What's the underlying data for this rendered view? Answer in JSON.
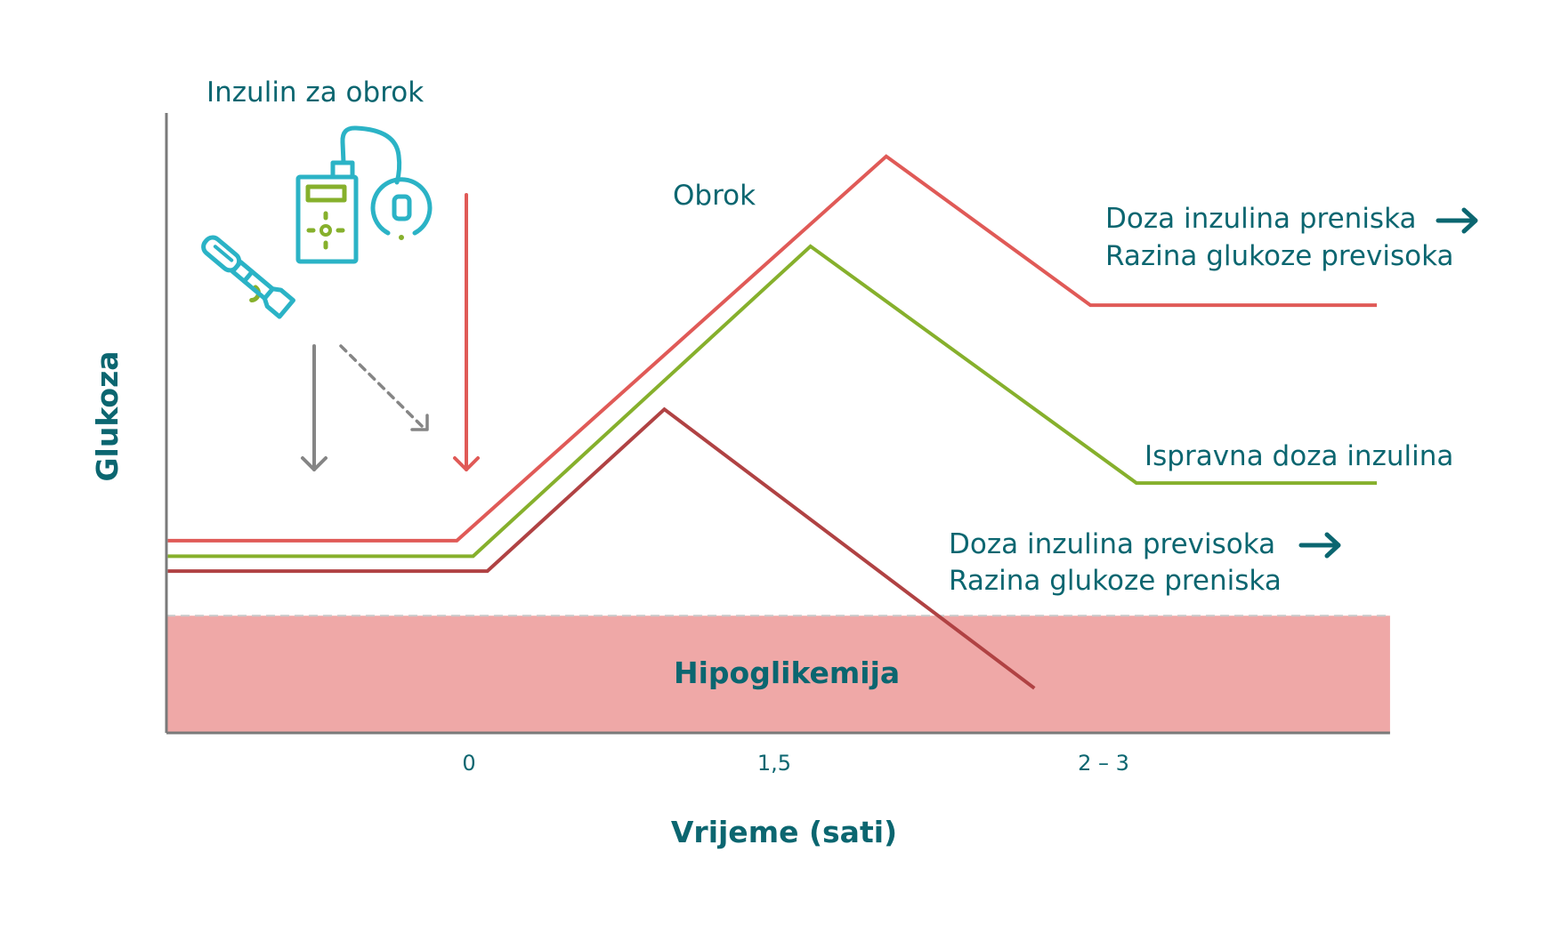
{
  "chart_data": {
    "type": "line",
    "title": "",
    "xlabel": "Vrijeme (sati)",
    "ylabel": "Glukoza",
    "x_ticks": [
      {
        "value": 0,
        "label": "0"
      },
      {
        "value": 1.5,
        "label": "1,5"
      },
      {
        "value": 2.5,
        "label": "2 – 3"
      }
    ],
    "xlim": [
      -1.5,
      3.37
    ],
    "ylim": [
      0,
      100
    ],
    "y_units": "relative (no scale shown)",
    "grid": false,
    "series": [
      {
        "name": "Doza inzulina preniska / Razina glukoze previsoka",
        "color": "#e05a57",
        "points": [
          [
            -1.48,
            31
          ],
          [
            -0.06,
            31
          ],
          [
            1.84,
            93
          ],
          [
            2.46,
            69
          ],
          [
            3.33,
            69
          ]
        ]
      },
      {
        "name": "Ispravna doza inzulina",
        "color": "#86b02c",
        "points": [
          [
            -1.48,
            28.5
          ],
          [
            0.02,
            28.5
          ],
          [
            1.61,
            78.5
          ],
          [
            2.6,
            40.3
          ],
          [
            3.33,
            40.3
          ]
        ]
      },
      {
        "name": "Doza inzulina previsoka / Razina glukoze preniska",
        "color": "#b04243",
        "points": [
          [
            -1.48,
            26.1
          ],
          [
            0.09,
            26.1
          ],
          [
            0.96,
            52.2
          ],
          [
            2.29,
            7.2
          ]
        ]
      }
    ],
    "hypoglycemia_zone": {
      "label": "Hipoglikemija",
      "threshold": 18.9,
      "color": "#efa8a7"
    },
    "annotations": {
      "insulin_label": "Inzulin za obrok",
      "meal_label": "Obrok",
      "series_labels": [
        {
          "series": 0,
          "lines": [
            "Doza inzulina preniska",
            "Razina glukoze previsoka"
          ],
          "arrow": "arrow-right-icon"
        },
        {
          "series": 1,
          "lines": [
            "Ispravna doza inzulina"
          ],
          "arrow": null
        },
        {
          "series": 2,
          "lines": [
            "Doza inzulina previsoka",
            "Razina glukoze preniska"
          ],
          "arrow": "arrow-right-icon"
        }
      ],
      "icons": [
        "insulin-pen-icon",
        "insulin-pump-icon"
      ],
      "arrows": [
        {
          "name": "injection-time-arrow",
          "color": "#858585",
          "style": "solid"
        },
        {
          "name": "delayed-injection-arrow",
          "color": "#858585",
          "style": "dashed"
        },
        {
          "name": "meal-time-arrow",
          "color": "#e05a57",
          "style": "solid"
        }
      ]
    }
  },
  "colors": {
    "text": "#0b6670",
    "axis": "#7a7a7a",
    "icon_primary": "#2bb3c6",
    "icon_secondary": "#86b02c"
  }
}
